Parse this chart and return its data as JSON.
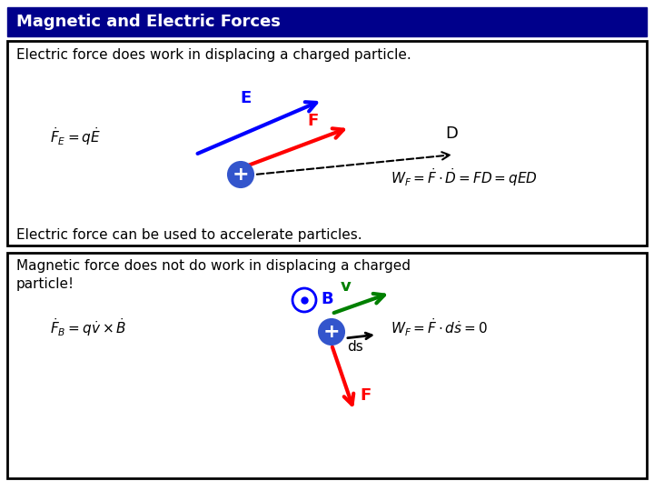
{
  "title": "Magnetic and Electric Forces",
  "title_bg": "#00008B",
  "title_color": "#FFFFFF",
  "panel1_text1": "Electric force does work in displacing a charged particle.",
  "panel1_text2": "Electric force can be used to accelerate particles.",
  "panel2_line1": "Magnetic force does not do work in displacing a charged",
  "panel2_line2": "particle!",
  "label_E": "E",
  "label_F1": "F",
  "label_D": "D",
  "label_B": "B",
  "label_v": "v",
  "label_ds": "ds",
  "label_F2": "F",
  "bg_color": "#FFFFFF",
  "title_font_size": 13,
  "body_font_size": 11,
  "formula_font_size": 11
}
